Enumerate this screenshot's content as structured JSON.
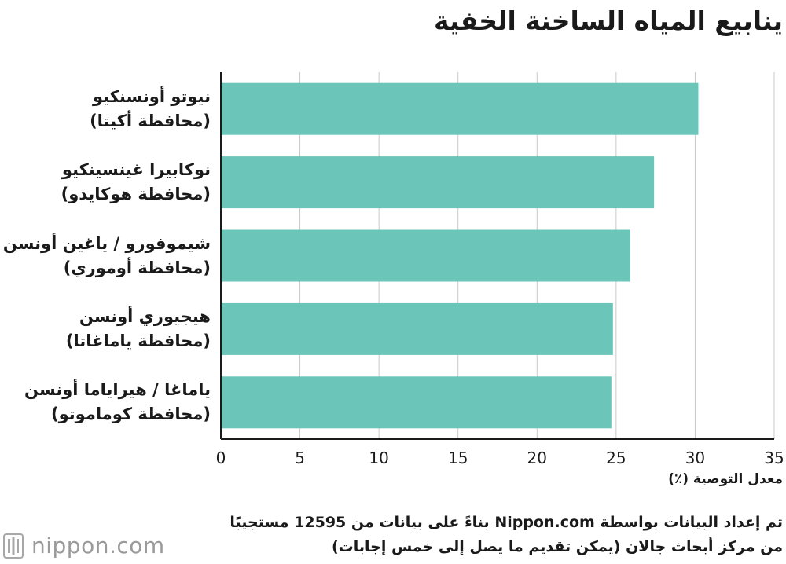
{
  "chart_data": {
    "type": "bar",
    "orientation": "horizontal",
    "title": "ينابيع المياه الساخنة الخفية",
    "categories": [
      [
        "نيوتو أونسنكيو",
        "(محافظة أكيتا)"
      ],
      [
        "نوكابيرا غينسينكيو",
        "(محافظة هوكايدو)"
      ],
      [
        "شيموفورو / ياغين أونسن",
        "(محافظة أوموري)"
      ],
      [
        "هيجيوري أونسن",
        "(محافظة ياماغاتا)"
      ],
      [
        "ياماغا / هيرایاما أونسن",
        "(محافظة كوماموتو)"
      ]
    ],
    "values": [
      30.2,
      27.4,
      25.9,
      24.8,
      24.7
    ],
    "xlim": [
      0,
      35
    ],
    "xticks": [
      "0",
      "5",
      "10",
      "15",
      "20",
      "25",
      "30",
      "35"
    ],
    "xlabel": "معدل التوصية (٪)",
    "ylabel": "",
    "grid": "vertical",
    "bar_color": "#6bc6b9"
  },
  "note": {
    "line1": "تم إعداد البيانات بواسطة Nippon.com بناءً على بيانات من 12595 مستجيبًا",
    "line2": "من مركز أبحاث جالان (يمكن تقديم ما يصل إلى خمس إجابات)"
  },
  "logo": {
    "icon": "nippon-seal-icon",
    "text": "nippon.com"
  }
}
